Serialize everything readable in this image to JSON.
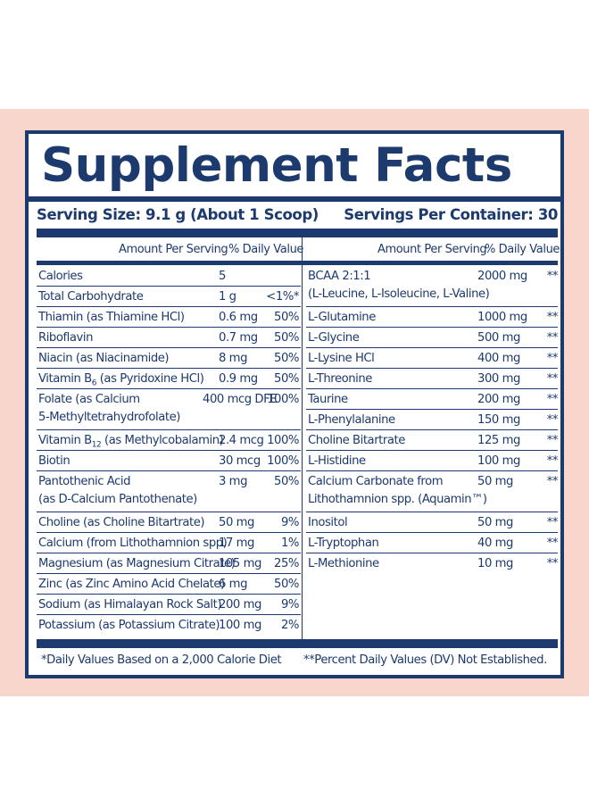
{
  "title": "Supplement Facts",
  "serving_size": "Serving Size: 9.1 g (About 1 Scoop)",
  "servings_per_container": "Servings Per Container: 30",
  "header_amount": "Amount Per Serving",
  "header_dv": "% Daily Value",
  "left_rows": [
    {
      "name": "Calories",
      "name2": "",
      "amount": "5",
      "dv": ""
    },
    {
      "name": "Total Carbohydrate",
      "name2": "",
      "amount": "1 g",
      "dv": "<1%*"
    },
    {
      "name": "Thiamin (as Thiamine HCl)",
      "name2": "",
      "amount": "0.6 mg",
      "dv": "50%"
    },
    {
      "name": "Riboflavin",
      "name2": "",
      "amount": "0.7 mg",
      "dv": "50%"
    },
    {
      "name": "Niacin (as Niacinamide)",
      "name2": "",
      "amount": "8 mg",
      "dv": "50%"
    },
    {
      "name": "Vitamin B",
      "sub": "6",
      "name_rest": " (as Pyridoxine HCl)",
      "name2": "",
      "amount": "0.9 mg",
      "dv": "50%"
    },
    {
      "name": "Folate (as Calcium",
      "name2": "5-Methyltetrahydrofolate)",
      "amount": "400 mcg DFE",
      "dv": "100%"
    },
    {
      "name": "Vitamin B",
      "sub": "12",
      "name_rest": " (as Methylcobalamin)",
      "name2": "",
      "amount": "2.4 mcg",
      "dv": "100%"
    },
    {
      "name": "Biotin",
      "name2": "",
      "amount": "30 mcg",
      "dv": "100%"
    },
    {
      "name": "Pantothenic Acid",
      "name2": "(as D-Calcium Pantothenate)",
      "amount": "3 mg",
      "dv": "50%"
    },
    {
      "name": "Choline (as Choline Bitartrate)",
      "name2": "",
      "amount": "50 mg",
      "dv": "9%"
    },
    {
      "name": "Calcium (from Lithothamnion spp)",
      "name2": "",
      "amount": "17 mg",
      "dv": "1%"
    },
    {
      "name": "Magnesium (as Magnesium Citrate)",
      "name2": "",
      "amount": "105 mg",
      "dv": "25%"
    },
    {
      "name": "Zinc (as Zinc Amino Acid Chelate)",
      "name2": "",
      "amount": "6 mg",
      "dv": "50%"
    },
    {
      "name": "Sodium (as Himalayan Rock Salt)",
      "name2": "",
      "amount": "200 mg",
      "dv": "9%"
    },
    {
      "name": "Potassium (as Potassium Citrate)",
      "name2": "",
      "amount": "100 mg",
      "dv": "2%"
    }
  ],
  "right_rows": [
    {
      "name": "BCAA 2:1:1",
      "name2": "(L-Leucine, L-Isoleucine, L-Valine)",
      "amount": "2000 mg",
      "dv": "**"
    },
    {
      "name": "L-Glutamine",
      "name2": "",
      "amount": "1000 mg",
      "dv": "**"
    },
    {
      "name": "L-Glycine",
      "name2": "",
      "amount": "500 mg",
      "dv": "**"
    },
    {
      "name": "L-Lysine HCl",
      "name2": "",
      "amount": "400 mg",
      "dv": "**"
    },
    {
      "name": "L-Threonine",
      "name2": "",
      "amount": "300 mg",
      "dv": "**"
    },
    {
      "name": "Taurine",
      "name2": "",
      "amount": "200 mg",
      "dv": "**"
    },
    {
      "name": "L-Phenylalanine",
      "name2": "",
      "amount": "150 mg",
      "dv": "**"
    },
    {
      "name": "Choline Bitartrate",
      "name2": "",
      "amount": "125 mg",
      "dv": "**"
    },
    {
      "name": "L-Histidine",
      "name2": "",
      "amount": "100 mg",
      "dv": "**"
    },
    {
      "name": "Calcium Carbonate from",
      "name2": "Lithothamnion spp. (Aquamin™)",
      "amount": "50 mg",
      "dv": "**"
    },
    {
      "name": "Inositol",
      "name2": "",
      "amount": "50 mg",
      "dv": "**"
    },
    {
      "name": "L-Tryptophan",
      "name2": "",
      "amount": "40 mg",
      "dv": "**"
    },
    {
      "name": "L-Methionine",
      "name2": "",
      "amount": "10 mg",
      "dv": "**"
    }
  ],
  "footnote_left": "*Daily Values Based on a 2,000 Calorie Diet",
  "footnote_right": "**Percent Daily Values (DV) Not Established.",
  "colors": {
    "navy": "#1d3a6e",
    "peach": "#f9d6cb"
  }
}
